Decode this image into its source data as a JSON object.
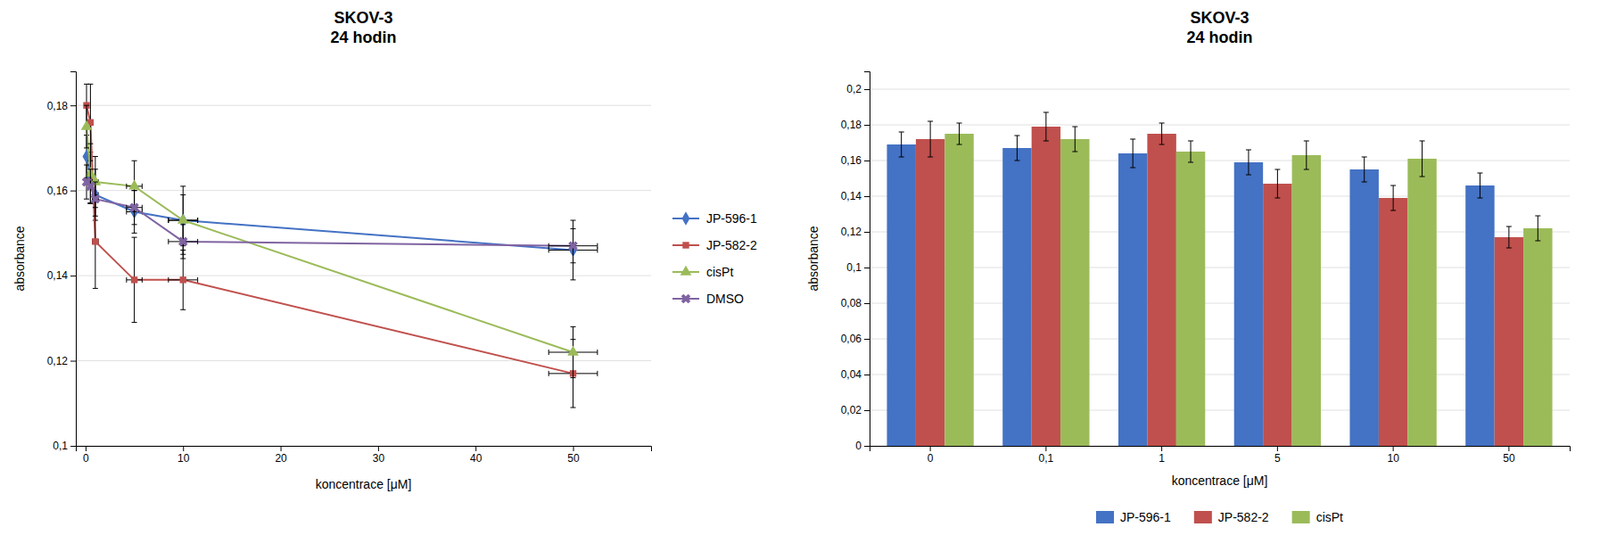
{
  "chart_data": [
    {
      "type": "line",
      "title": "SKOV-3\n24 hodin",
      "xlabel": "koncentrace [μM]",
      "ylabel": "absorbance",
      "x": [
        0.1,
        0.5,
        1.0,
        5.0,
        10.0,
        50.0
      ],
      "xlim": [
        -1,
        58
      ],
      "ylim": [
        0.1,
        0.188
      ],
      "xticks": [
        0,
        10,
        20,
        30,
        40,
        50
      ],
      "yticks": [
        {
          "value": 0.1,
          "label": "0,1"
        },
        {
          "value": 0.12,
          "label": "0,12"
        },
        {
          "value": 0.14,
          "label": "0,14"
        },
        {
          "value": 0.16,
          "label": "0,16"
        },
        {
          "value": 0.18,
          "label": "0,18"
        }
      ],
      "grid": "y",
      "legend": "right",
      "series": [
        {
          "name": "JP-596-1",
          "color": "#4472C4",
          "marker": "diamond",
          "values": [
            0.168,
            0.163,
            0.159,
            0.155,
            0.153,
            0.146
          ],
          "errors": [
            0.005,
            0.006,
            0.006,
            0.005,
            0.006,
            0.007
          ],
          "x_errors": [
            0.05,
            0.15,
            0.3,
            0.8,
            1.5,
            2.5
          ]
        },
        {
          "name": "JP-582-2",
          "color": "#C0504D",
          "marker": "square",
          "values": [
            0.18,
            0.176,
            0.148,
            0.139,
            0.139,
            0.117
          ],
          "errors": [
            0.005,
            0.009,
            0.011,
            0.01,
            0.007,
            0.008
          ],
          "x_errors": [
            0.05,
            0.15,
            0.3,
            0.8,
            1.5,
            2.5
          ]
        },
        {
          "name": "cisPt",
          "color": "#9BBB59",
          "marker": "triangle",
          "values": [
            0.175,
            0.164,
            0.162,
            0.161,
            0.153,
            0.122
          ],
          "errors": [
            0.005,
            0.007,
            0.006,
            0.006,
            0.008,
            0.006
          ],
          "x_errors": [
            0.05,
            0.15,
            0.3,
            0.8,
            1.5,
            2.5
          ]
        },
        {
          "name": "DMSO",
          "color": "#8064A2",
          "marker": "x",
          "values": [
            0.162,
            0.161,
            0.158,
            0.156,
            0.148,
            0.147
          ],
          "errors": [
            0.004,
            0.004,
            0.004,
            0.004,
            0.004,
            0.004
          ],
          "x_errors": [
            0.05,
            0.15,
            0.3,
            0.8,
            1.5,
            2.5
          ]
        }
      ]
    },
    {
      "type": "bar",
      "title": "SKOV-3\n24 hodin",
      "xlabel": "koncentrace [μM]",
      "ylabel": "absorbance",
      "categories": [
        "0",
        "0,1",
        "1",
        "5",
        "10",
        "50"
      ],
      "ylim": [
        0,
        0.21
      ],
      "yticks": [
        0,
        {
          "value": 0.02,
          "label": "0,02"
        },
        {
          "value": 0.04,
          "label": "0,04"
        },
        {
          "value": 0.06,
          "label": "0,06"
        },
        {
          "value": 0.08,
          "label": "0,08"
        },
        {
          "value": 0.1,
          "label": "0,1"
        },
        {
          "value": 0.12,
          "label": "0,12"
        },
        {
          "value": 0.14,
          "label": "0,14"
        },
        {
          "value": 0.16,
          "label": "0,16"
        },
        {
          "value": 0.18,
          "label": "0,18"
        },
        {
          "value": 0.2,
          "label": "0,2"
        }
      ],
      "grid": "y",
      "legend": "bottom",
      "series": [
        {
          "name": "JP-596-1",
          "color": "#4472C4",
          "values": [
            0.169,
            0.167,
            0.164,
            0.159,
            0.155,
            0.146
          ],
          "errors": [
            0.007,
            0.007,
            0.008,
            0.007,
            0.007,
            0.007
          ]
        },
        {
          "name": "JP-582-2",
          "color": "#C0504D",
          "values": [
            0.172,
            0.179,
            0.175,
            0.147,
            0.139,
            0.117
          ],
          "errors": [
            0.01,
            0.008,
            0.006,
            0.008,
            0.007,
            0.006
          ]
        },
        {
          "name": "cisPt",
          "color": "#9BBB59",
          "values": [
            0.175,
            0.172,
            0.165,
            0.163,
            0.161,
            0.122
          ],
          "errors": [
            0.006,
            0.007,
            0.006,
            0.008,
            0.01,
            0.007
          ]
        }
      ]
    }
  ]
}
